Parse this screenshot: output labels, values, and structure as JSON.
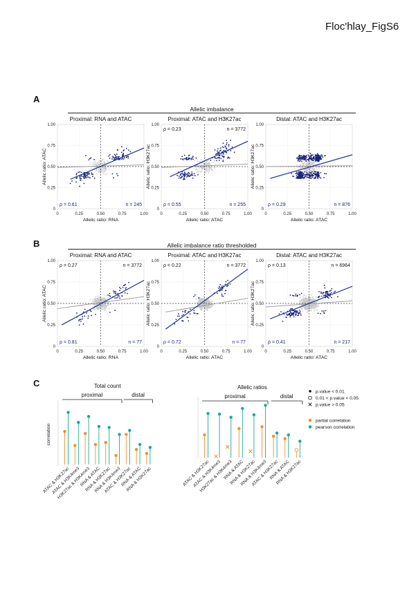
{
  "figure_title": "Floc'hlay_FigS6",
  "panels": {
    "A": {
      "letter": "A",
      "section_title": "Allelic imbalance"
    },
    "B": {
      "letter": "B",
      "section_title": "Allelic imbalance ratio thresholded"
    },
    "C": {
      "letter": "C"
    }
  },
  "colors": {
    "scatter_sig": "#1a237e",
    "scatter_bg": "#c8c8c8",
    "fit_line": "#2c3f9c",
    "grey_line": "#9e9e9e",
    "partial": "#f0902a",
    "pearson": "#1aa89a"
  },
  "chart_data": [
    {
      "id": "A1",
      "type": "scatter",
      "title": "Proximal: RNA and ATAC",
      "xlabel": "Allelic ratio: RNA",
      "ylabel": "Allelic ratio: ATAC",
      "xlim": [
        0,
        1
      ],
      "ylim": [
        0,
        1
      ],
      "x_ticks": [
        "0",
        "0.25",
        "0.50",
        "0.75",
        "1.00"
      ],
      "y_ticks": [
        "0",
        "0.25",
        "0.50",
        "0.75",
        "1.00"
      ],
      "annotations": {
        "rho_bottom": "ρ = 0.61",
        "n_bottom": "n = 245"
      },
      "fit_line": [
        [
          0.15,
          0.35
        ],
        [
          1.0,
          0.72
        ]
      ],
      "grey_line": [
        [
          0.0,
          0.49
        ],
        [
          1.0,
          0.52
        ]
      ],
      "background_points": true
    },
    {
      "id": "A2",
      "type": "scatter",
      "title": "Proximal: ATAC and H3K27ac",
      "xlabel": "Allelic ratio: ATAC",
      "ylabel": "Allelic ratio: H3K27ac",
      "xlim": [
        0,
        1
      ],
      "ylim": [
        0,
        1
      ],
      "x_ticks": [
        "0",
        "0.25",
        "0.50",
        "0.75",
        "1.00"
      ],
      "y_ticks": [
        "0",
        "0.25",
        "0.50",
        "0.75",
        "1.00"
      ],
      "annotations": {
        "rho_top": "ρ = 0.23",
        "n_top": "n = 3772",
        "rho_bottom": "ρ = 0.55",
        "n_bottom": "n = 255"
      },
      "fit_line": [
        [
          0.1,
          0.38
        ],
        [
          1.0,
          0.8
        ]
      ],
      "grey_line": [
        [
          0.0,
          0.49
        ],
        [
          1.0,
          0.53
        ]
      ],
      "background_points": true
    },
    {
      "id": "A3",
      "type": "scatter",
      "title": "Distal: ATAC and H3K27ac",
      "xlabel": "Allelic ratio: ATAC",
      "ylabel": "Allelic ratio: H3K27ac",
      "xlim": [
        0,
        1
      ],
      "ylim": [
        0,
        1
      ],
      "x_ticks": [
        "0",
        "0.25",
        "0.50",
        "0.75",
        "1.00"
      ],
      "y_ticks": [
        "0",
        "0.25",
        "0.50",
        "0.75",
        "1.00"
      ],
      "annotations": {
        "rho_bottom": "ρ = 0.29",
        "n_bottom": "n = 876"
      },
      "fit_line": [
        [
          0.05,
          0.36
        ],
        [
          1.0,
          0.64
        ]
      ],
      "grey_line": [
        [
          0.0,
          0.5
        ],
        [
          1.0,
          0.51
        ]
      ],
      "background_points": true
    },
    {
      "id": "B1",
      "type": "scatter",
      "title": "Proximal: RNA and ATAC",
      "xlabel": "Allelic ratio: RNA",
      "ylabel": "Allelic ratio: ATAC",
      "xlim": [
        0,
        1
      ],
      "ylim": [
        0,
        1
      ],
      "x_ticks": [
        "0",
        "0.25",
        "0.50",
        "0.75",
        "1.00"
      ],
      "y_ticks": [
        "0",
        "0.25",
        "0.50",
        "0.75",
        "1.00"
      ],
      "annotations": {
        "rho_top": "ρ = 0.27",
        "n_top": "n = 3772",
        "rho_bottom": "ρ = 0.81",
        "n_bottom": "n = 77"
      },
      "fit_line": [
        [
          0.05,
          0.25
        ],
        [
          1.0,
          0.77
        ]
      ],
      "grey_line": [
        [
          0.0,
          0.44
        ],
        [
          1.0,
          0.58
        ]
      ],
      "background_points": true
    },
    {
      "id": "B2",
      "type": "scatter",
      "title": "Proximal: ATAC and H3K27ac",
      "xlabel": "Allelic ratio: ATAC",
      "ylabel": "Allelic ratio: H3K27ac",
      "xlim": [
        0,
        1
      ],
      "ylim": [
        0,
        1
      ],
      "x_ticks": [
        "0",
        "0.25",
        "0.50",
        "0.75",
        "1.00"
      ],
      "y_ticks": [
        "0",
        "0.25",
        "0.50",
        "0.75",
        "1.00"
      ],
      "annotations": {
        "rho_top": "ρ = 0.22",
        "n_top": "n = 3772",
        "rho_bottom": "ρ = 0.72",
        "n_bottom": "n = 77"
      },
      "fit_line": [
        [
          0.05,
          0.2
        ],
        [
          1.0,
          0.9
        ]
      ],
      "grey_line": [
        [
          0.05,
          0.4
        ],
        [
          1.0,
          0.56
        ]
      ],
      "background_points": true
    },
    {
      "id": "B3",
      "type": "scatter",
      "title": "Distal: ATAC and H3K27ac",
      "xlabel": "Allelic ratio: ATAC",
      "ylabel": "Allelic ratio: H3K27ac",
      "xlim": [
        0,
        1
      ],
      "ylim": [
        0,
        1
      ],
      "x_ticks": [
        "0",
        "0.25",
        "0.50",
        "0.75",
        "1.00"
      ],
      "y_ticks": [
        "0",
        "0.25",
        "0.50",
        "0.75",
        "1.00"
      ],
      "annotations": {
        "rho_top": "ρ = 0.13",
        "n_top": "n = 6964",
        "rho_bottom": "ρ = 0.41",
        "n_bottom": "n = 217"
      },
      "fit_line": [
        [
          0.05,
          0.32
        ],
        [
          1.0,
          0.7
        ]
      ],
      "grey_line": [
        [
          0.0,
          0.46
        ],
        [
          1.0,
          0.53
        ]
      ],
      "background_points": true
    },
    {
      "id": "C1",
      "type": "lollipop",
      "title": "Total count",
      "ylabel": "correlation",
      "ylim": [
        0,
        0.6
      ],
      "y_ticks": [],
      "groups": [
        {
          "label": "proximal",
          "from": 0,
          "to": 5
        },
        {
          "label": "distal",
          "from": 6,
          "to": 8
        }
      ],
      "categories": [
        "ATAC & H3K27ac",
        "ATAC & H3K4me3",
        "H3K27ac & H3K4me3",
        "RNA & ATAC",
        "RNA & H3K27ac",
        "RNA & H3K4me3",
        "ATAC & H3K27ac",
        "RNA & ATAC",
        "RNA & H3K27ac"
      ],
      "series": [
        {
          "name": "partial correlation",
          "values": [
            0.33,
            0.19,
            0.31,
            0.2,
            0.22,
            0.09,
            0.3,
            0.15,
            0.11
          ],
          "significance": [
            "dot",
            "dot",
            "dot",
            "dot",
            "dot",
            "dot",
            "dot",
            "dot",
            "dot"
          ]
        },
        {
          "name": "pearson correlation",
          "values": [
            0.52,
            0.42,
            0.48,
            0.38,
            0.37,
            0.3,
            0.34,
            0.2,
            0.17
          ],
          "significance": [
            "dot",
            "dot",
            "dot",
            "dot",
            "dot",
            "dot",
            "dot",
            "dot",
            "dot"
          ]
        }
      ]
    },
    {
      "id": "C2",
      "type": "lollipop",
      "title": "Allelic ratios",
      "ylabel": "",
      "ylim": [
        0,
        0.9
      ],
      "y_ticks": [],
      "groups": [
        {
          "label": "proximal",
          "from": 0,
          "to": 5
        },
        {
          "label": "distal",
          "from": 6,
          "to": 8
        }
      ],
      "categories": [
        "ATAC & H3K27ac",
        "ATAC & H3K4me3",
        "H3K27ac & H3K4me3",
        "RNA & ATAC",
        "RNA & H3K27ac",
        "RNA & H3K4me3",
        "ATAC & H3K27ac",
        "RNA & ATAC",
        "RNA & H3K27ac"
      ],
      "series": [
        {
          "name": "partial correlation",
          "values": [
            0.36,
            0.02,
            0.17,
            0.46,
            0.1,
            0.49,
            0.34,
            0.3,
            0.12
          ],
          "significance": [
            "dot",
            "cross",
            "cross",
            "dot",
            "cross",
            "dot",
            "dot",
            "dot",
            "circle"
          ]
        },
        {
          "name": "pearson correlation",
          "values": [
            0.7,
            0.69,
            0.64,
            0.78,
            0.68,
            0.83,
            0.39,
            0.36,
            0.26
          ],
          "significance": [
            "dot",
            "dot",
            "dot",
            "dot",
            "dot",
            "dot",
            "dot",
            "dot",
            "dot"
          ]
        }
      ]
    }
  ],
  "legend": {
    "significance": [
      {
        "symbol": "dot",
        "label": "p.value < 0.01"
      },
      {
        "symbol": "circle",
        "label": "0.01 < p.value < 0.05"
      },
      {
        "symbol": "cross",
        "label": "p.value > 0.05"
      }
    ],
    "series": [
      {
        "name": "partial correlation",
        "color": "#f0902a"
      },
      {
        "name": "pearson correlation",
        "color": "#1aa89a"
      }
    ]
  }
}
